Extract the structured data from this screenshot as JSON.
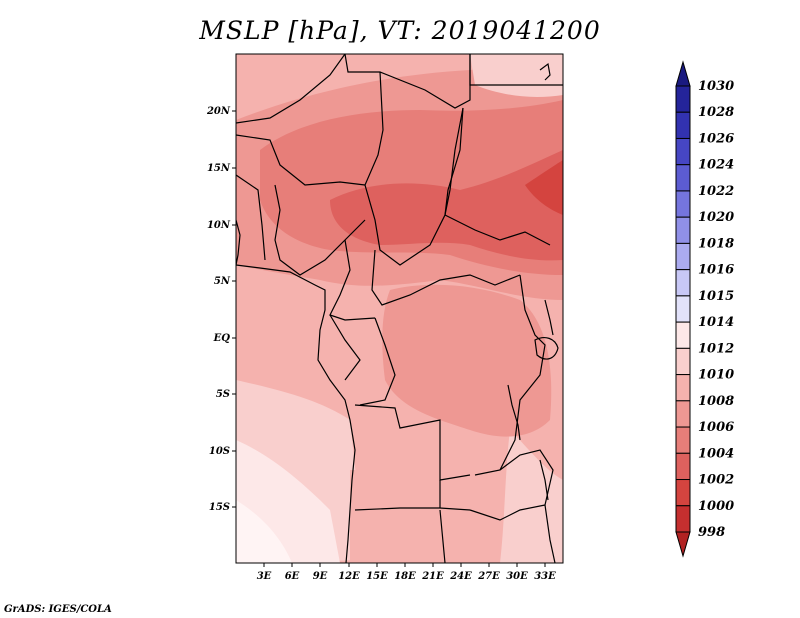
{
  "title": "MSLP [hPa], VT: 2019041200",
  "credit": "GrADS: IGES/COLA",
  "map": {
    "variable": "MSLP",
    "units": "hPa",
    "valid_time": "2019041200",
    "lat_ticks": [
      "20N",
      "15N",
      "10N",
      "5N",
      "EQ",
      "5S",
      "10S",
      "15S"
    ],
    "lon_ticks": [
      "3E",
      "6E",
      "9E",
      "12E",
      "15E",
      "18E",
      "21E",
      "24E",
      "27E",
      "30E",
      "33E"
    ]
  },
  "colorbar": {
    "levels": [
      "1030",
      "1028",
      "1026",
      "1024",
      "1022",
      "1020",
      "1018",
      "1016",
      "1015",
      "1014",
      "1012",
      "1010",
      "1008",
      "1006",
      "1004",
      "1002",
      "1000",
      "998"
    ],
    "colors": [
      "#1a1a80",
      "#24249a",
      "#3232b0",
      "#4646c4",
      "#5c5cd2",
      "#7575de",
      "#9090e8",
      "#ababf0",
      "#c8c8f6",
      "#e2e2fa",
      "#fde8e8",
      "#f9cfcd",
      "#f5b2ae",
      "#ee9893",
      "#e77e79",
      "#de615e",
      "#d4443f",
      "#c52f2f",
      "#b22222"
    ]
  }
}
